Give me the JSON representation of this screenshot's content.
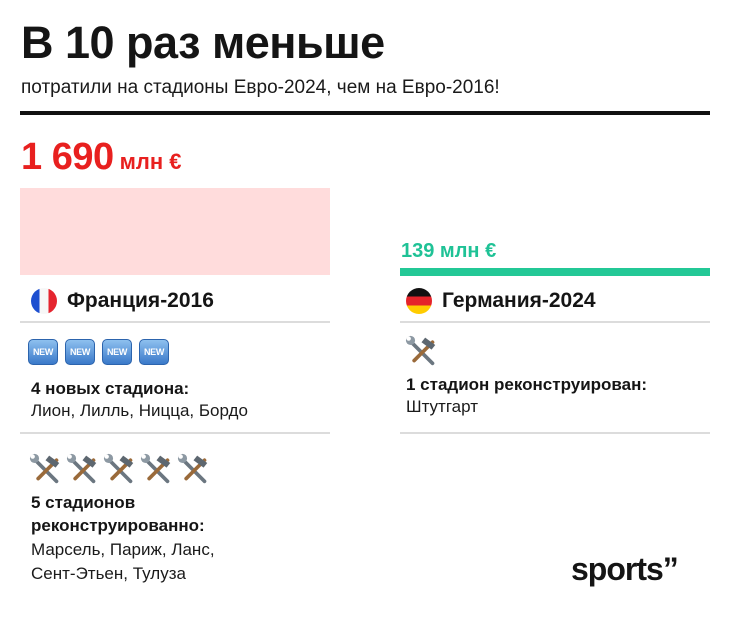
{
  "header": {
    "title": "В 10 раз меньше",
    "subtitle": "потратили на стадионы Евро-2024, чем на Евро-2016!"
  },
  "france": {
    "amount_value": "1 690",
    "amount_unit": "млн €",
    "spend_mln_eur": 1690,
    "country_label": "Франция-2016",
    "flag": "france-flag-icon",
    "new_badge_label": "NEW",
    "new_stadiums_count": 4,
    "new_stadiums_heading": "4 новых стадиона:",
    "new_stadiums_cities": "Лион, Лилль, Ницца, Бордо",
    "reconstructed_count": 5,
    "reconstructed_heading_line1": "5 стадионов",
    "reconstructed_heading_line2": "реконструированно:",
    "reconstructed_cities_line1": "Марсель, Париж, Ланс,",
    "reconstructed_cities_line2": "Сент-Этьен, Тулуза"
  },
  "germany": {
    "amount_label": "139 млн €",
    "spend_mln_eur": 139,
    "country_label": "Германия-2024",
    "flag": "germany-flag-icon",
    "reconstructed_count": 1,
    "reconstructed_heading": "1 стадион реконструирован:",
    "reconstructed_cities": "Штутгарт"
  },
  "brand": {
    "logo_text": "sports”"
  },
  "colors": {
    "france_accent": "#e8201f",
    "france_bar": "#ffdcdc",
    "germany_accent": "#1fc296",
    "germany_bar": "#23c896"
  },
  "icons": {
    "tools": "hammer-and-wrench-icon",
    "new": "new-badge-icon"
  }
}
